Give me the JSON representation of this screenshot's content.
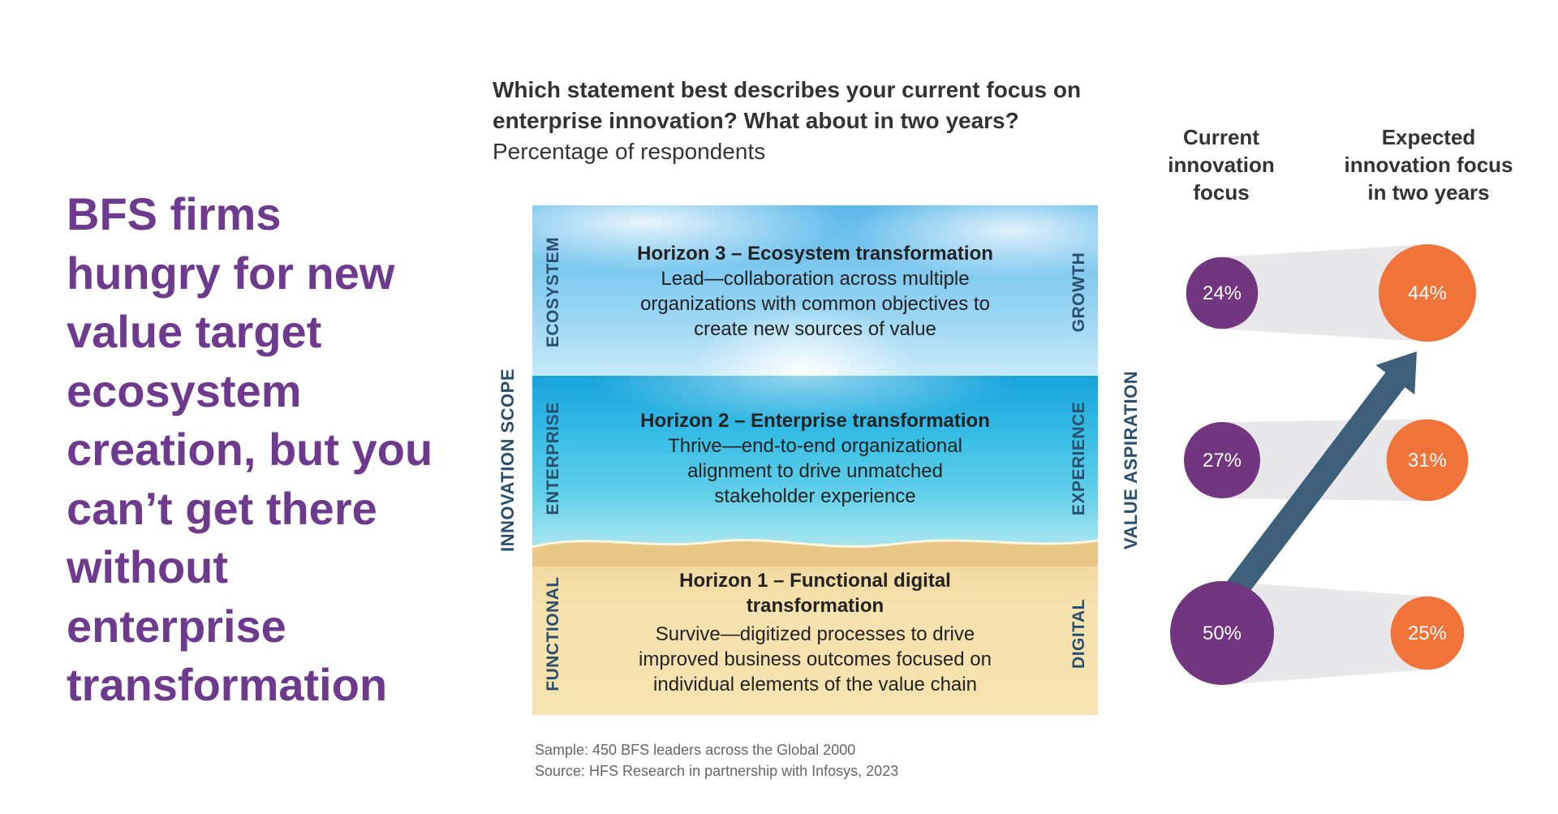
{
  "headline": "BFS firms hungry for new value target ecosystem creation, but you can’t get there without enterprise transformation",
  "question": {
    "text": "Which statement best describes your current focus on enterprise innovation? What about in two years?",
    "subtitle": "Percentage of respondents"
  },
  "labels": {
    "left_axis": "INNOVATION SCOPE",
    "right_axis": "VALUE ASPIRATION"
  },
  "horizons": [
    {
      "scope": "ECOSYSTEM",
      "aspiration": "GROWTH",
      "title": "Horizon 3 – Ecosystem transformation",
      "description": "Lead—collaboration across multiple organizations with common objectives to create new sources of value"
    },
    {
      "scope": "ENTERPRISE",
      "aspiration": "EXPERIENCE",
      "title": "Horizon 2 – Enterprise transformation",
      "description": "Thrive—end-to-end organizational alignment to drive unmatched stakeholder experience"
    },
    {
      "scope": "FUNCTIONAL",
      "aspiration": "DIGITAL",
      "title": "Horizon 1 – Functional digital transformation",
      "description": "Survive—digitized processes to drive improved business outcomes focused on individual elements of the value chain"
    }
  ],
  "source": {
    "sample": "Sample: 450 BFS leaders across the Global 2000",
    "source": "Source: HFS Research in partnership with Infosys, 2023"
  },
  "chart_data": {
    "type": "bubble",
    "unit": "%",
    "columns": [
      "Current innovation focus",
      "Expected innovation focus in two years"
    ],
    "rows": [
      "Horizon 3 – Ecosystem transformation",
      "Horizon 2 – Enterprise transformation",
      "Horizon 1 – Functional digital transformation"
    ],
    "series": [
      {
        "name": "Current innovation focus",
        "values": [
          24,
          27,
          50
        ]
      },
      {
        "name": "Expected innovation focus in two years",
        "values": [
          44,
          31,
          25
        ]
      }
    ],
    "colors": {
      "current": "#72357f",
      "expected": "#f0733a",
      "arrow": "#3d5f79",
      "connector": "#e8e8ea"
    }
  }
}
